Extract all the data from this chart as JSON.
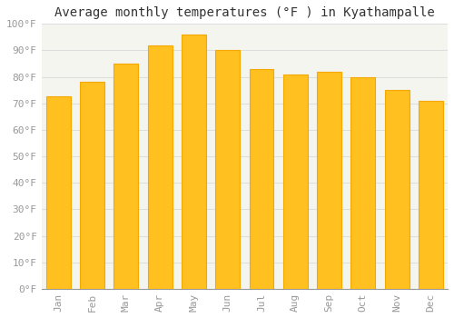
{
  "title": "Average monthly temperatures (°F ) in Kyathampalle",
  "months": [
    "Jan",
    "Feb",
    "Mar",
    "Apr",
    "May",
    "Jun",
    "Jul",
    "Aug",
    "Sep",
    "Oct",
    "Nov",
    "Dec"
  ],
  "values": [
    72.5,
    78,
    85,
    92,
    96,
    90,
    83,
    81,
    82,
    80,
    75,
    71
  ],
  "bar_color": "#FFC020",
  "bar_edge_color": "#F5A800",
  "background_color": "#FFFFFF",
  "chart_bg_color": "#F5F5F0",
  "grid_color": "#DDDDDD",
  "ylim": [
    0,
    100
  ],
  "ytick_step": 10,
  "title_fontsize": 10,
  "tick_fontsize": 8,
  "font_family": "monospace",
  "tick_color": "#999999",
  "title_color": "#333333"
}
